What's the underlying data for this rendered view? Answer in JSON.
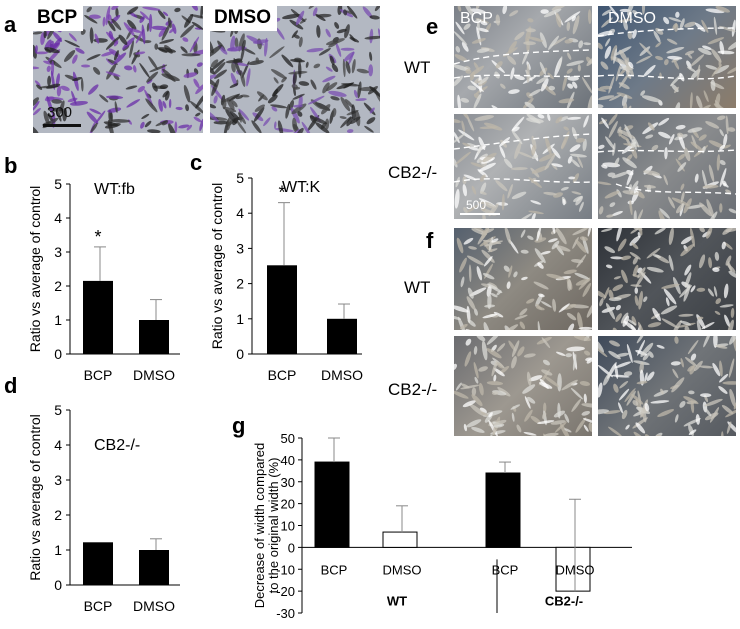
{
  "panels": {
    "a": {
      "letter": "a",
      "images": [
        {
          "label": "BCP"
        },
        {
          "label": "DMSO"
        }
      ],
      "scale": "300"
    },
    "e": {
      "letter": "e",
      "columns": [
        "BCP",
        "DMSO"
      ],
      "rows": [
        "WT",
        "CB2-/-"
      ],
      "scale": "500"
    },
    "f": {
      "letter": "f",
      "rows": [
        "WT",
        "CB2-/-"
      ]
    }
  },
  "chart_data": [
    {
      "panel": "b",
      "type": "bar",
      "subtitle": "WT:fb",
      "ylabel": "Ratio vs average of control",
      "categories": [
        "BCP",
        "DMSO"
      ],
      "values": [
        2.15,
        1.0
      ],
      "errors": [
        1.0,
        0.6
      ],
      "significance": [
        "*",
        ""
      ],
      "ylim": [
        0,
        5
      ],
      "yticks": [
        0,
        1,
        2,
        3,
        4,
        5
      ]
    },
    {
      "panel": "c",
      "type": "bar",
      "subtitle": "WT:K",
      "ylabel": "Ratio vs average of control",
      "categories": [
        "BCP",
        "DMSO"
      ],
      "values": [
        2.52,
        1.0
      ],
      "errors": [
        1.78,
        0.42
      ],
      "significance": [
        "*",
        ""
      ],
      "ylim": [
        0,
        5
      ],
      "yticks": [
        0,
        1,
        2,
        3,
        4,
        5
      ]
    },
    {
      "panel": "d",
      "type": "bar",
      "subtitle": "CB2-/-",
      "ylabel": "Ratio vs average of control",
      "categories": [
        "BCP",
        "DMSO"
      ],
      "values": [
        1.22,
        1.0
      ],
      "errors": [
        0.0,
        0.32
      ],
      "significance": [
        "",
        ""
      ],
      "ylim": [
        0,
        5
      ],
      "yticks": [
        0,
        1,
        2,
        3,
        4,
        5
      ]
    },
    {
      "panel": "g",
      "type": "bar",
      "ylabel": "Decrease of width compared to the original width (%)",
      "ylim": [
        -30,
        50
      ],
      "yticks": [
        -30,
        -20,
        -10,
        0,
        10,
        20,
        30,
        40,
        50
      ],
      "groups": [
        "WT",
        "CB2-/-"
      ],
      "categories": [
        "BCP",
        "DMSO",
        "BCP",
        "DMSO"
      ],
      "values": [
        39,
        7,
        34,
        -20
      ],
      "errors": [
        11,
        12,
        5,
        42
      ],
      "fills": [
        "#000000",
        "#ffffff",
        "#000000",
        "#ffffff"
      ]
    }
  ]
}
